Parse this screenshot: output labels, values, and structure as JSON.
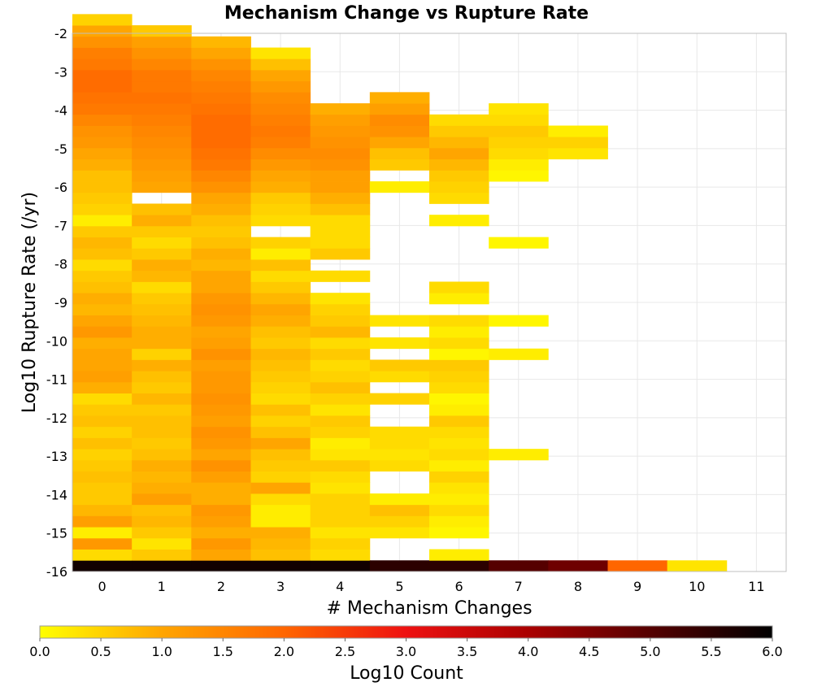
{
  "chart_data": {
    "type": "heatmap",
    "title": "Mechanism Change vs Rupture Rate",
    "xlabel": "# Mechanism Changes",
    "ylabel": "Log10 Rupture Rate (/yr)",
    "x_ticks": [
      "0",
      "1",
      "2",
      "3",
      "4",
      "5",
      "6",
      "7",
      "8",
      "9",
      "10",
      "11"
    ],
    "y_ticks": [
      "-2",
      "-3",
      "-4",
      "-5",
      "-6",
      "-7",
      "-8",
      "-9",
      "-10",
      "-11",
      "-12",
      "-13",
      "-14",
      "-15",
      "-16"
    ],
    "xlim": [
      -0.5,
      11.5
    ],
    "ylim": [
      -16,
      -2
    ],
    "y_bin_width": 0.29,
    "grid": true,
    "colorbar": {
      "label": "Log10 Count",
      "range": [
        0.0,
        6.0
      ],
      "ticks": [
        "0.0",
        "0.5",
        "1.0",
        "1.5",
        "2.0",
        "2.5",
        "3.0",
        "3.5",
        "4.0",
        "4.5",
        "5.0",
        "5.5",
        "6.0"
      ],
      "colormap": [
        "#ffff00",
        "#ffa500",
        "#ff6600",
        "#ee1111",
        "#aa0000",
        "#550000",
        "#000000"
      ]
    },
    "columns": [
      {
        "x": 0,
        "y_start": -16,
        "values": [
          5.8,
          0.4,
          1.2,
          0.2,
          1.1,
          0.8,
          0.6,
          0.6,
          0.7,
          0.6,
          0.5,
          0.7,
          0.5,
          0.7,
          0.6,
          0.4,
          0.9,
          1.1,
          1.0,
          1.0,
          0.9,
          1.2,
          1.0,
          0.8,
          0.9,
          0.7,
          0.6,
          0.4,
          0.7,
          0.8,
          0.6,
          0.2,
          0.5,
          0.6,
          0.7,
          0.7,
          0.9,
          1.0,
          1.2,
          1.3,
          1.5,
          1.7,
          1.8,
          1.9,
          1.9,
          1.7,
          1.6,
          1.3,
          1.0,
          0.5
        ]
      },
      {
        "x": 1,
        "y_start": -16,
        "values": [
          5.8,
          0.6,
          0.3,
          0.6,
          0.8,
          0.7,
          1.1,
          0.9,
          0.8,
          0.9,
          0.7,
          0.6,
          0.7,
          0.7,
          0.6,
          0.8,
          0.6,
          0.7,
          0.9,
          0.5,
          0.9,
          0.9,
          0.8,
          0.7,
          0.6,
          0.4,
          0.8,
          0.9,
          0.6,
          0.4,
          0.6,
          0.9,
          0.7,
          null,
          1.0,
          1.1,
          1.2,
          1.3,
          1.4,
          1.5,
          1.6,
          1.7,
          1.8,
          1.7,
          1.7,
          1.5,
          1.3,
          1.1,
          0.6
        ]
      },
      {
        "x": 2,
        "y_start": -16,
        "values": [
          5.8,
          1.0,
          1.2,
          0.9,
          1.1,
          1.2,
          0.9,
          0.9,
          1.1,
          1.3,
          1.0,
          1.2,
          1.3,
          1.1,
          1.2,
          1.3,
          1.2,
          1.2,
          1.1,
          1.3,
          1.1,
          1.0,
          1.2,
          1.3,
          1.2,
          1.0,
          1.0,
          0.8,
          0.9,
          0.7,
          0.6,
          0.7,
          0.9,
          1.0,
          1.3,
          1.5,
          1.7,
          1.8,
          1.9,
          1.9,
          1.9,
          1.8,
          1.7,
          1.6,
          1.5,
          1.3,
          1.0,
          0.8
        ]
      },
      {
        "x": 3,
        "y_start": -16,
        "values": [
          5.8,
          0.7,
          0.8,
          0.9,
          0.2,
          0.2,
          0.4,
          1.0,
          0.5,
          0.6,
          0.7,
          1.0,
          0.7,
          0.5,
          0.7,
          0.4,
          0.5,
          0.6,
          0.7,
          0.8,
          0.6,
          0.7,
          0.9,
          1.0,
          0.8,
          0.6,
          0.4,
          0.7,
          0.2,
          0.5,
          null,
          0.4,
          0.5,
          0.6,
          0.9,
          1.0,
          1.2,
          1.4,
          1.6,
          1.7,
          1.6,
          1.5,
          1.4,
          1.2,
          1.0,
          0.7,
          0.3
        ]
      },
      {
        "x": 4,
        "y_start": -16,
        "values": [
          5.8,
          0.4,
          0.5,
          0.3,
          0.5,
          0.5,
          0.5,
          0.3,
          0.4,
          0.6,
          0.3,
          0.2,
          0.5,
          0.6,
          0.3,
          0.5,
          0.7,
          0.5,
          0.4,
          0.6,
          0.4,
          0.8,
          0.6,
          0.5,
          0.3,
          null,
          0.4,
          null,
          0.6,
          0.4,
          0.4,
          0.4,
          0.7,
          0.9,
          1.1,
          1.1,
          1.3,
          1.4,
          1.3,
          1.2,
          1.1,
          0.9
        ]
      },
      {
        "x": 5,
        "y_start": -16,
        "values": [
          5.5,
          null,
          null,
          0.3,
          0.5,
          0.7,
          0.2,
          null,
          null,
          0.4,
          0.3,
          0.4,
          0.4,
          null,
          null,
          0.5,
          null,
          0.4,
          0.6,
          null,
          0.3,
          null,
          0.3,
          null,
          null,
          null,
          null,
          null,
          null,
          null,
          null,
          null,
          null,
          null,
          0.2,
          null,
          0.6,
          0.7,
          1.0,
          1.3,
          1.4,
          1.1,
          0.9
        ]
      },
      {
        "x": 6,
        "y_start": -16,
        "values": [
          5.5,
          0.2,
          null,
          0.1,
          0.2,
          0.4,
          0.2,
          0.3,
          0.5,
          0.2,
          0.4,
          0.3,
          0.4,
          0.6,
          0.2,
          0.1,
          0.4,
          0.5,
          0.6,
          0.1,
          0.4,
          0.2,
          0.4,
          null,
          0.2,
          0.4,
          null,
          null,
          null,
          null,
          null,
          0.2,
          null,
          0.4,
          0.5,
          0.6,
          0.8,
          1.0,
          0.8,
          0.6,
          0.4
        ]
      },
      {
        "x": 7,
        "y_start": -16,
        "values": [
          5.0,
          null,
          null,
          null,
          null,
          null,
          null,
          null,
          null,
          null,
          0.2,
          null,
          null,
          null,
          null,
          null,
          null,
          null,
          null,
          0.2,
          null,
          null,
          0.1,
          null,
          null,
          null,
          null,
          null,
          null,
          0.1,
          null,
          null,
          null,
          null,
          null,
          0.1,
          0.2,
          0.4,
          0.5,
          0.6,
          0.4,
          0.3
        ]
      },
      {
        "x": 8,
        "y_start": -16,
        "values": [
          4.7,
          null,
          null,
          null,
          null,
          null,
          null,
          null,
          null,
          null,
          null,
          null,
          null,
          null,
          null,
          null,
          null,
          null,
          null,
          null,
          null,
          null,
          null,
          null,
          null,
          null,
          null,
          null,
          null,
          null,
          null,
          null,
          null,
          null,
          null,
          null,
          null,
          0.3,
          0.5,
          0.2
        ]
      },
      {
        "x": 9,
        "y_start": -16,
        "values": [
          2.0
        ]
      },
      {
        "x": 10,
        "y_start": -16,
        "values": [
          0.3
        ]
      }
    ]
  }
}
